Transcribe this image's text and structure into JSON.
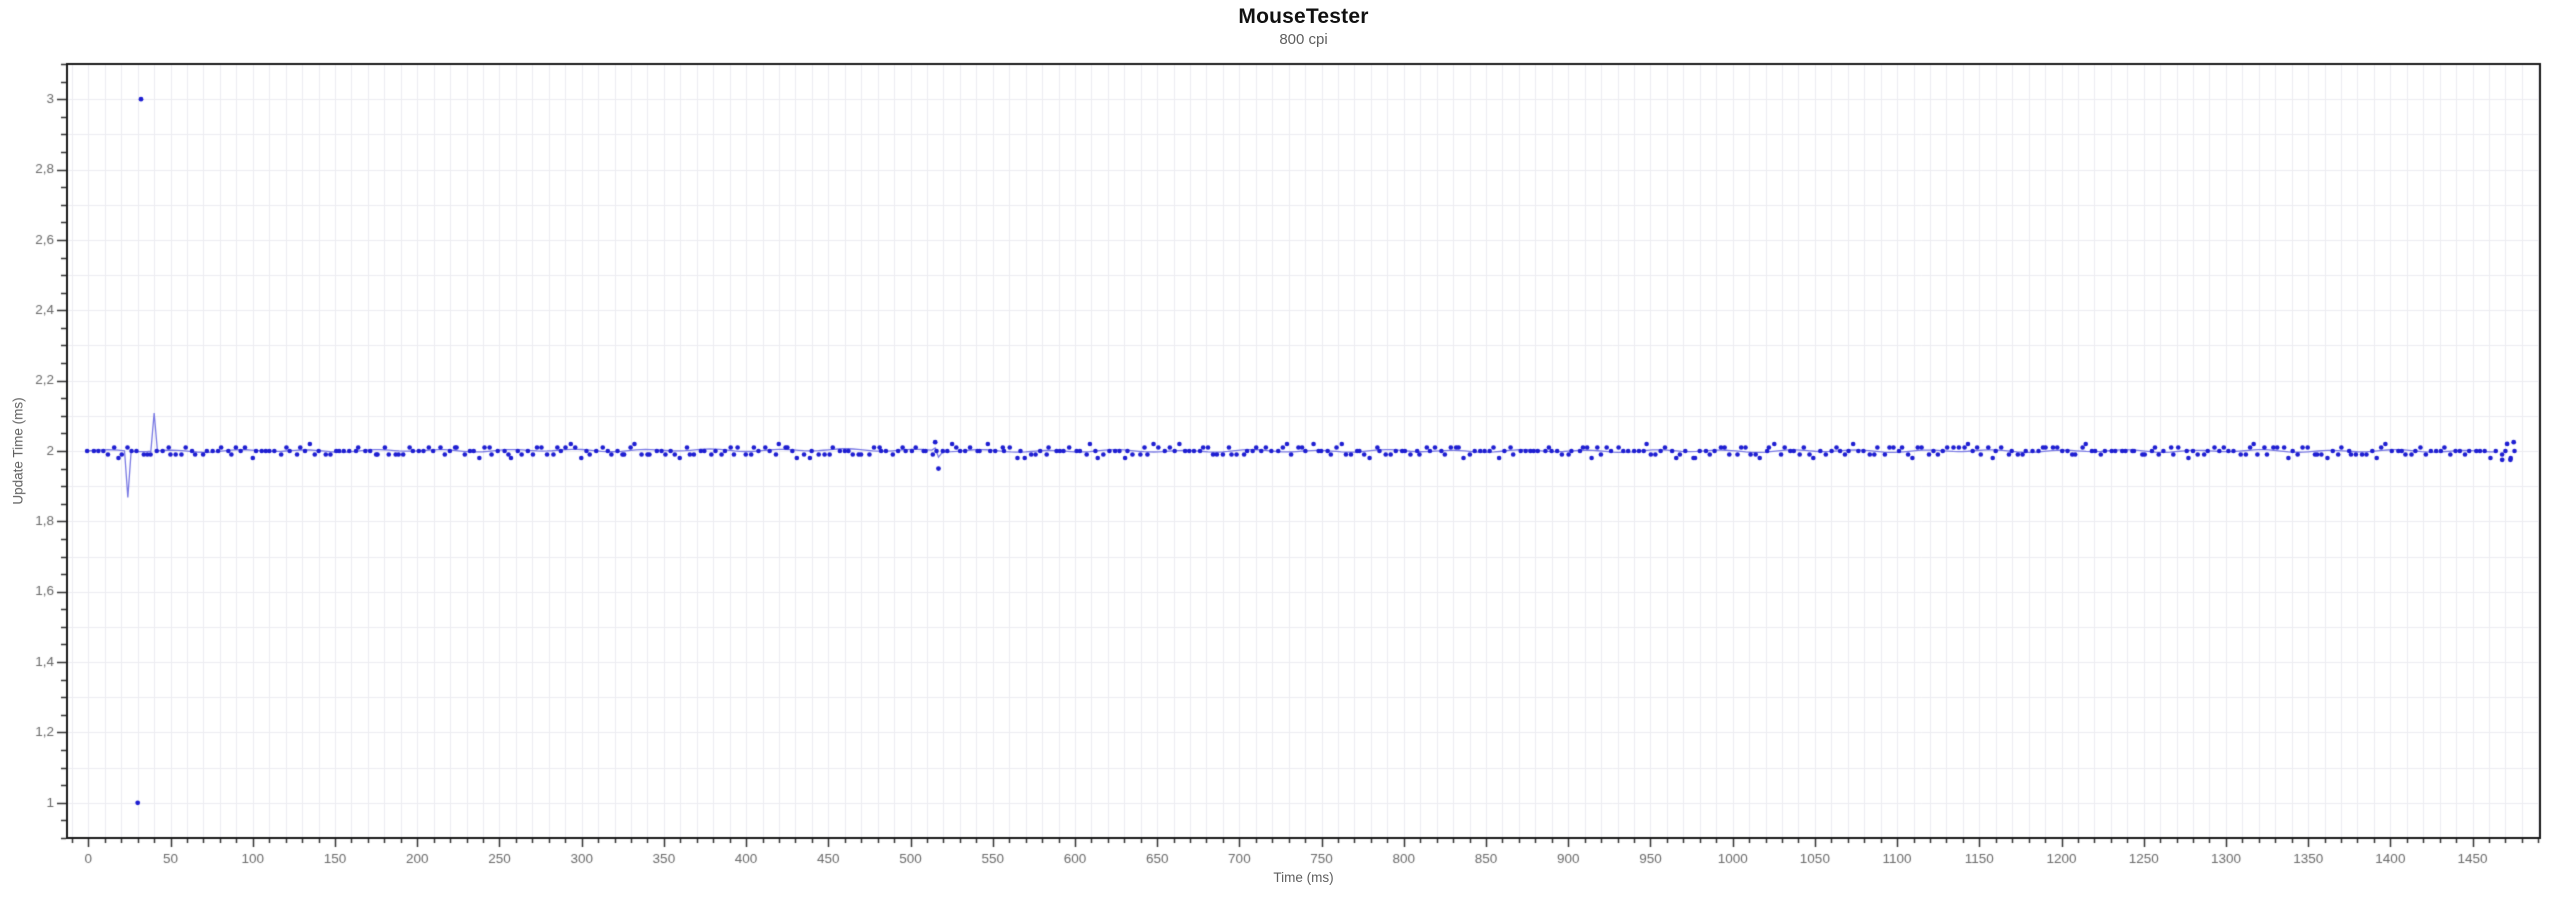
{
  "chart_data": {
    "type": "scatter",
    "title": "MouseTester",
    "subtitle": "800 cpi",
    "xlabel": "Time (ms)",
    "ylabel": "Update Time (ms)",
    "xlim": [
      -13,
      1491
    ],
    "ylim": [
      0.9,
      3.1
    ],
    "grid": true,
    "x_grid_step": 10,
    "y_grid_step": 0.1,
    "x_major_tick_step": 50,
    "x_minor_tick_step": 10,
    "y_major_tick_step": 0.2,
    "y_minor_tick_step": 0.05,
    "decimal_separator": ",",
    "x_tick_values": [
      0,
      50,
      100,
      150,
      200,
      250,
      300,
      350,
      400,
      450,
      500,
      550,
      600,
      650,
      700,
      750,
      800,
      850,
      900,
      950,
      1000,
      1050,
      1100,
      1150,
      1200,
      1250,
      1300,
      1350,
      1400,
      1450
    ],
    "x_tick_labels": [
      "0",
      "50",
      "100",
      "150",
      "200",
      "250",
      "300",
      "350",
      "400",
      "450",
      "500",
      "550",
      "600",
      "650",
      "700",
      "750",
      "800",
      "850",
      "900",
      "950",
      "1000",
      "1050",
      "1100",
      "1150",
      "1200",
      "1250",
      "1300",
      "1350",
      "1400",
      "1450"
    ],
    "y_tick_values": [
      1,
      1.2,
      1.4,
      1.6,
      1.8,
      2,
      2.2,
      2.4,
      2.6,
      2.8,
      3
    ],
    "y_tick_labels": [
      "1",
      "1,2",
      "1,4",
      "1,6",
      "1,8",
      "2",
      "2,2",
      "2,4",
      "2,6",
      "2,8",
      "3"
    ],
    "series": {
      "name": "Update Time",
      "baseline_ms": 2.0,
      "noise_amplitude_ms": 0.022,
      "noise_quantum_ms": 0.01,
      "x_jitter_ms": 1.2,
      "x_start": 0,
      "x_end": 1476,
      "x_step": 3,
      "seed": 1337,
      "outlier_points": [
        [
          30,
          1.0
        ],
        [
          32,
          3.0
        ],
        [
          515,
          2.025
        ],
        [
          517,
          1.95
        ],
        [
          1468,
          1.975
        ],
        [
          1471,
          2.02
        ],
        [
          1473,
          1.975
        ],
        [
          1475,
          2.025
        ]
      ],
      "line_x_start": 0,
      "line_x_end": 1466,
      "line_anomaly_points": [
        [
          22,
          2.0
        ],
        [
          24,
          1.868
        ],
        [
          26,
          2.0
        ],
        [
          38,
          2.0
        ],
        [
          40,
          2.108
        ],
        [
          42,
          2.0
        ],
        [
          513,
          2.003
        ],
        [
          515,
          2.01
        ],
        [
          517,
          1.984
        ],
        [
          519,
          1.996
        ],
        [
          521,
          2.0
        ]
      ],
      "line_wiggle_amplitude_ms": 0.004,
      "line_wiggle_period_ms": 41
    },
    "colors": {
      "point": "#1e1ed2",
      "line": "#7a7ae4",
      "grid": "#ededf2",
      "axis": "#1a1a1a",
      "tick": "#333333",
      "tick_label": "#6b6b6b",
      "axis_title": "#5f5f5f",
      "title": "#111111",
      "subtitle": "#5f5f5f",
      "background": "#ffffff"
    }
  }
}
